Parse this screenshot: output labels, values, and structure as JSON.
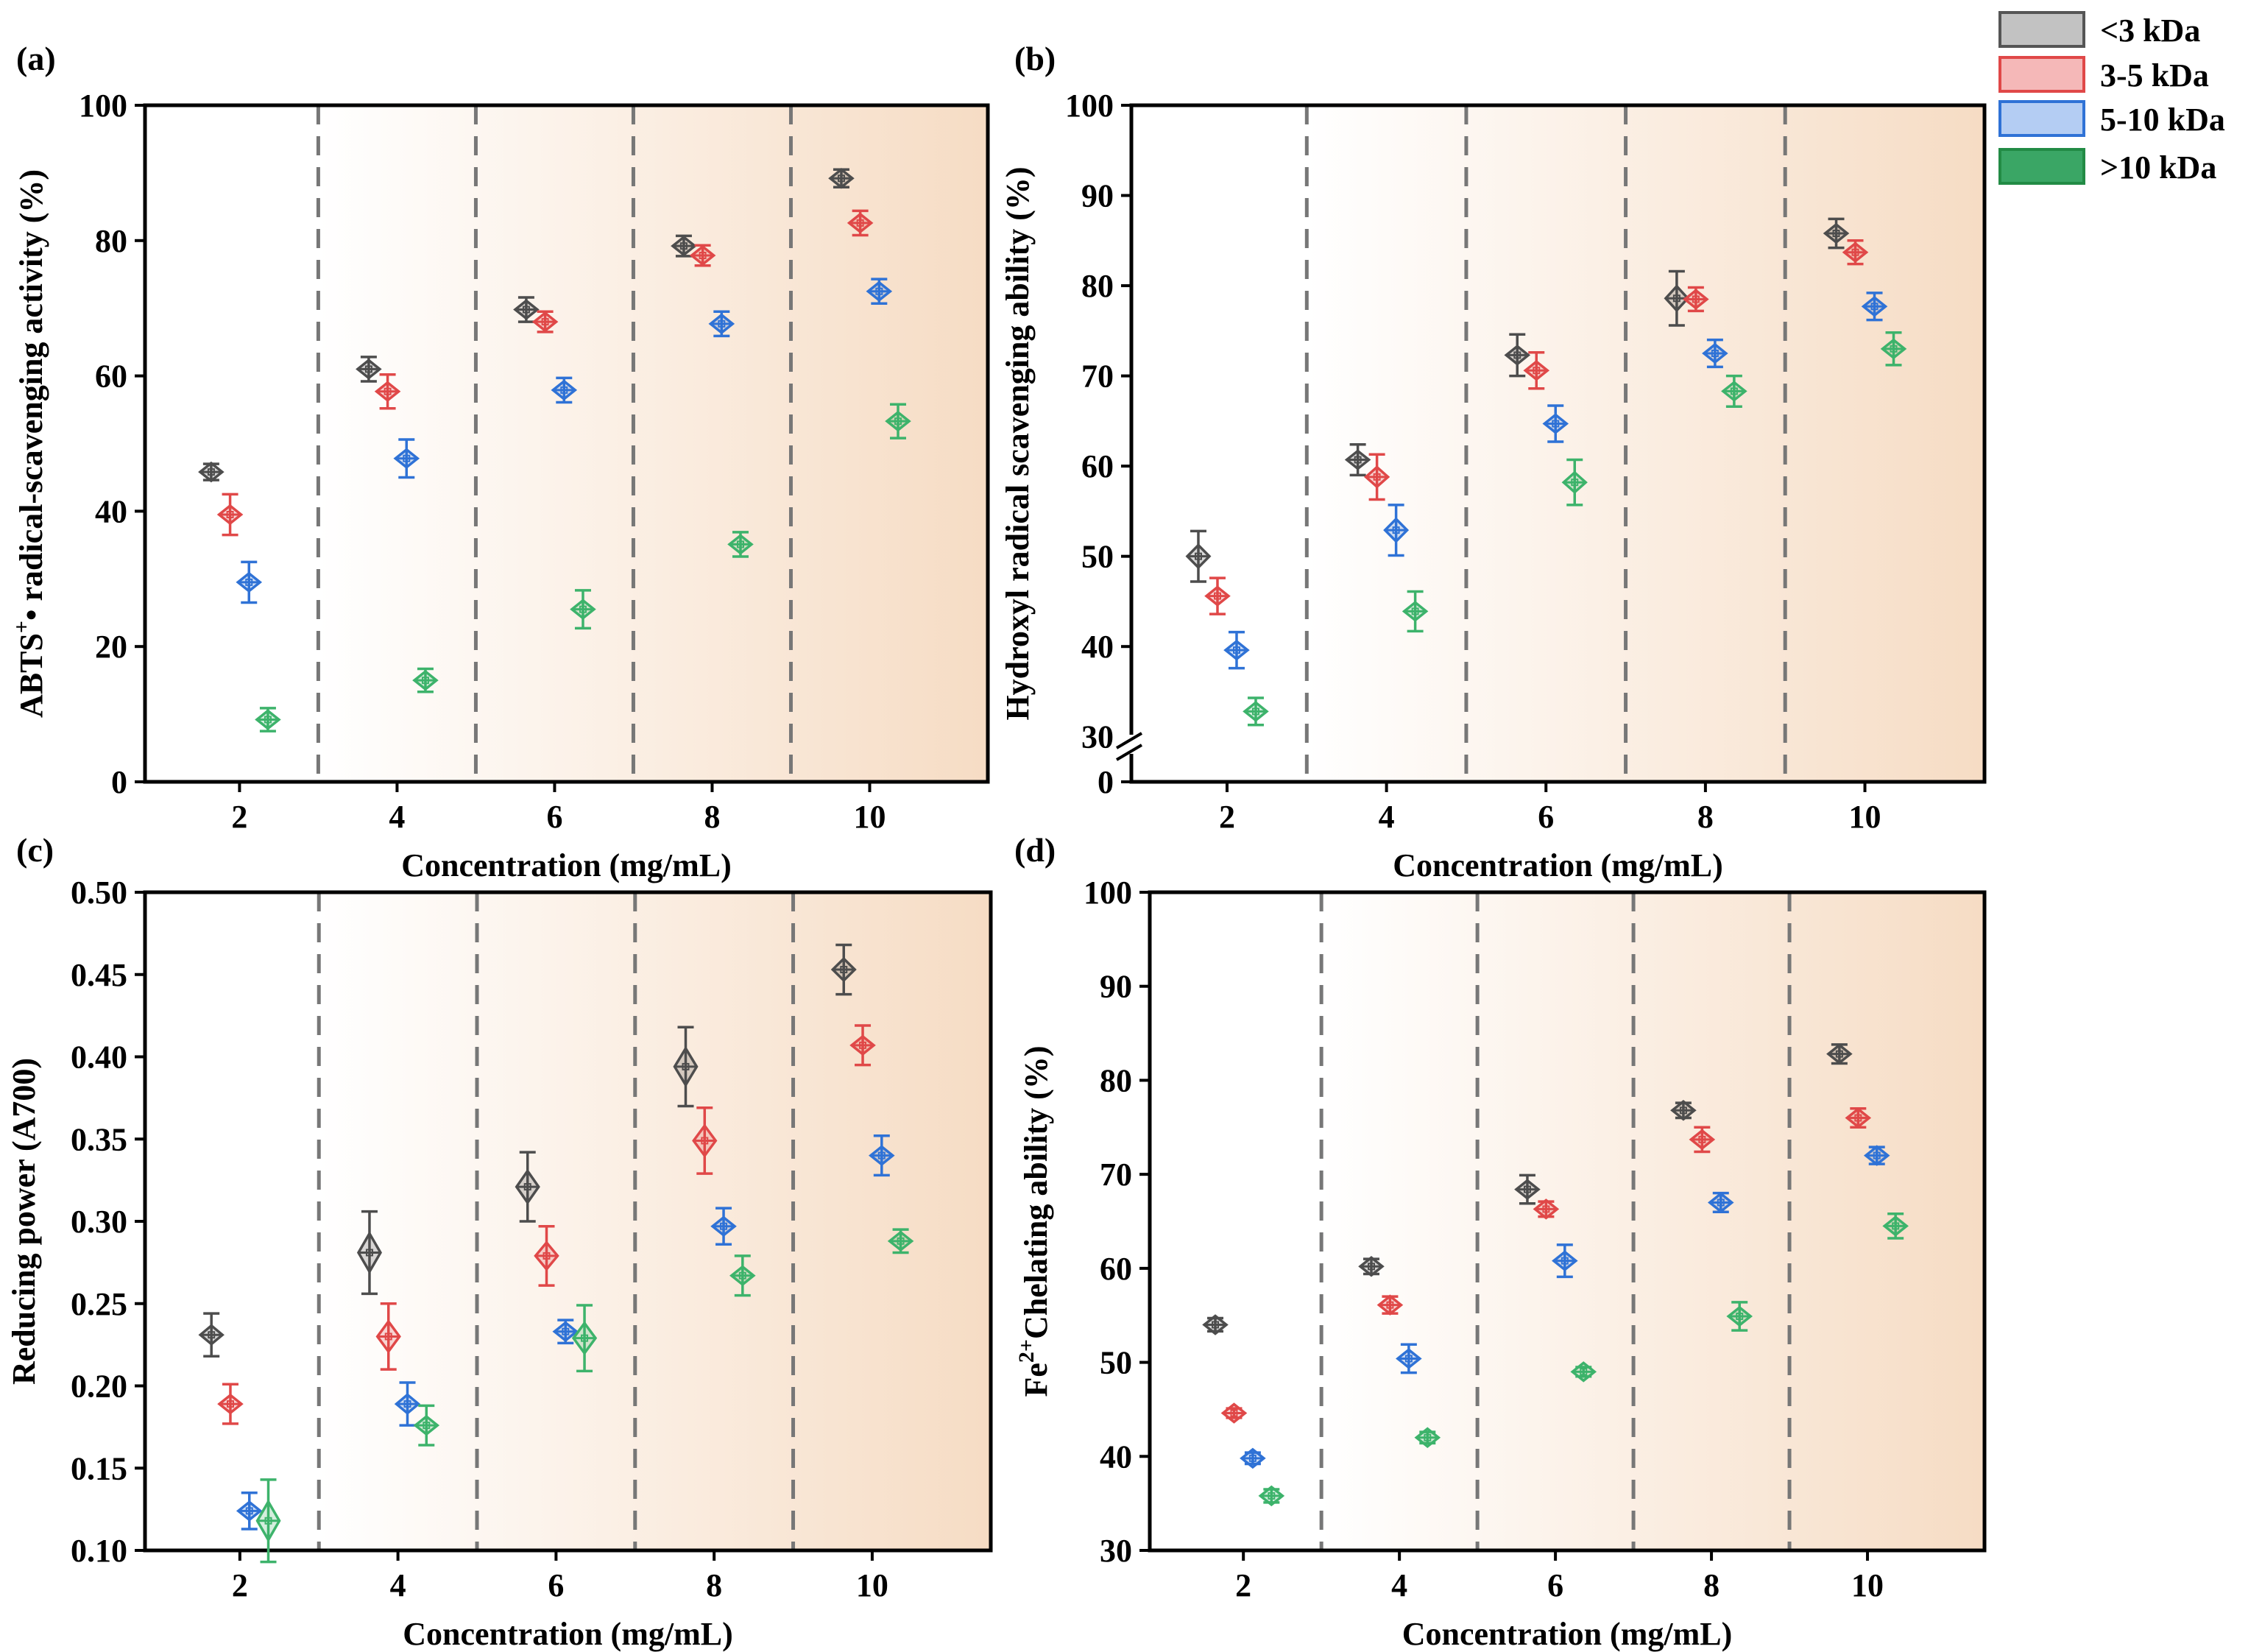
{
  "colors": {
    "series": [
      "#4d4d4d",
      "#e04848",
      "#2f72d6",
      "#3db36b"
    ],
    "legend_fill": [
      "#c2c2c2",
      "#f5b8b8",
      "#b4cdf3",
      "#3aa665"
    ],
    "legend_stroke": [
      "#555555",
      "#e04848",
      "#2f72d6",
      "#228b45"
    ],
    "band": "#f6dcc4",
    "divider": "#777777"
  },
  "legend": {
    "entries": [
      "<3 kDa",
      "3-5 kDa",
      "5-10 kDa",
      ">10 kDa"
    ]
  },
  "chart_data": [
    {
      "panel": "(a)",
      "type": "violin-scatter",
      "xlabel": "Concentration (mg/mL)",
      "ylabel_main": "ABTS",
      "ylabel_sup": "+",
      "ylabel_rest": "• radical-scavenging activity (%)",
      "categories": [
        "2",
        "4",
        "6",
        "8",
        "10"
      ],
      "ylim": [
        0,
        100
      ],
      "yticks": [
        0,
        20,
        40,
        60,
        80,
        100
      ],
      "ytick_labels": [
        "0",
        "20",
        "40",
        "60",
        "80",
        "100"
      ],
      "axis_break": false,
      "series": [
        {
          "name": "<3 kDa",
          "values": [
            45.8,
            61.0,
            69.8,
            79.2,
            89.2
          ],
          "errors": [
            1.2,
            1.8,
            1.8,
            1.5,
            1.3
          ]
        },
        {
          "name": "3-5 kDa",
          "values": [
            39.5,
            57.7,
            68.0,
            77.8,
            82.6
          ],
          "errors": [
            3.0,
            2.5,
            1.5,
            1.5,
            1.8
          ]
        },
        {
          "name": "5-10 kDa",
          "values": [
            29.5,
            47.8,
            57.9,
            67.7,
            72.5
          ],
          "errors": [
            3.0,
            2.8,
            1.8,
            1.8,
            1.8
          ]
        },
        {
          "name": ">10 kDa",
          "values": [
            9.2,
            15.0,
            25.5,
            35.1,
            53.3
          ],
          "errors": [
            1.7,
            1.7,
            2.8,
            1.8,
            2.5
          ]
        }
      ]
    },
    {
      "panel": "(b)",
      "type": "violin-scatter",
      "xlabel": "Concentration (mg/mL)",
      "ylabel_main": "Hydroxyl radical scavenging ability (%)",
      "ylabel_sup": "",
      "ylabel_rest": "",
      "categories": [
        "2",
        "4",
        "6",
        "8",
        "10"
      ],
      "ylim": [
        25,
        100
      ],
      "yticks": [
        30,
        40,
        50,
        60,
        70,
        80,
        90,
        100
      ],
      "ytick_labels": [
        "30",
        "40",
        "50",
        "60",
        "70",
        "80",
        "90",
        "100"
      ],
      "axis_break": true,
      "break_label": "0",
      "series": [
        {
          "name": "<3 kDa",
          "values": [
            50.0,
            60.7,
            72.3,
            78.6,
            85.8
          ],
          "errors": [
            2.8,
            1.7,
            2.3,
            3.0,
            1.6
          ]
        },
        {
          "name": "3-5 kDa",
          "values": [
            45.6,
            58.8,
            70.6,
            78.5,
            83.7
          ],
          "errors": [
            2.0,
            2.5,
            2.0,
            1.3,
            1.3
          ]
        },
        {
          "name": "5-10 kDa",
          "values": [
            39.6,
            52.9,
            64.7,
            72.5,
            77.7
          ],
          "errors": [
            2.0,
            2.8,
            2.0,
            1.5,
            1.5
          ]
        },
        {
          "name": ">10 kDa",
          "values": [
            32.8,
            43.9,
            58.2,
            68.3,
            73.0
          ],
          "errors": [
            1.5,
            2.2,
            2.5,
            1.7,
            1.8
          ]
        }
      ]
    },
    {
      "panel": "(c)",
      "type": "violin-scatter",
      "xlabel": "Concentration (mg/mL)",
      "ylabel_main": "Reducing power (A700)",
      "ylabel_sup": "",
      "ylabel_rest": "",
      "categories": [
        "2",
        "4",
        "6",
        "8",
        "10"
      ],
      "ylim": [
        0.1,
        0.5
      ],
      "yticks": [
        0.1,
        0.15,
        0.2,
        0.25,
        0.3,
        0.35,
        0.4,
        0.45,
        0.5
      ],
      "ytick_labels": [
        "0.10",
        "0.15",
        "0.20",
        "0.25",
        "0.30",
        "0.35",
        "0.40",
        "0.45",
        "0.50"
      ],
      "axis_break": false,
      "series": [
        {
          "name": "<3 kDa",
          "values": [
            0.231,
            0.281,
            0.321,
            0.394,
            0.453
          ],
          "errors": [
            0.013,
            0.025,
            0.021,
            0.024,
            0.015
          ]
        },
        {
          "name": "3-5 kDa",
          "values": [
            0.189,
            0.23,
            0.279,
            0.349,
            0.407
          ],
          "errors": [
            0.012,
            0.02,
            0.018,
            0.02,
            0.012
          ]
        },
        {
          "name": "5-10 kDa",
          "values": [
            0.124,
            0.189,
            0.233,
            0.297,
            0.34
          ],
          "errors": [
            0.011,
            0.013,
            0.007,
            0.011,
            0.012
          ]
        },
        {
          "name": ">10 kDa",
          "values": [
            0.118,
            0.176,
            0.229,
            0.267,
            0.288
          ],
          "errors": [
            0.025,
            0.012,
            0.02,
            0.012,
            0.007
          ]
        }
      ]
    },
    {
      "panel": "(d)",
      "type": "violin-scatter",
      "xlabel": "Concentration (mg/mL)",
      "ylabel_main": "Fe",
      "ylabel_sup": "2+",
      "ylabel_rest": "Chelating ability (%)",
      "categories": [
        "2",
        "4",
        "6",
        "8",
        "10"
      ],
      "ylim": [
        30,
        100
      ],
      "yticks": [
        30,
        40,
        50,
        60,
        70,
        80,
        90,
        100
      ],
      "ytick_labels": [
        "30",
        "40",
        "50",
        "60",
        "70",
        "80",
        "90",
        "100"
      ],
      "axis_break": false,
      "series": [
        {
          "name": "<3 kDa",
          "values": [
            54.0,
            60.2,
            68.4,
            76.8,
            82.8
          ],
          "errors": [
            0.7,
            0.8,
            1.5,
            0.8,
            1.0
          ]
        },
        {
          "name": "3-5 kDa",
          "values": [
            44.6,
            56.1,
            66.3,
            73.7,
            76.0
          ],
          "errors": [
            0.5,
            0.9,
            0.8,
            1.3,
            1.0
          ]
        },
        {
          "name": "5-10 kDa",
          "values": [
            39.8,
            50.4,
            60.8,
            67.0,
            72.0
          ],
          "errors": [
            0.6,
            1.5,
            1.7,
            1.0,
            0.9
          ]
        },
        {
          "name": ">10 kDa",
          "values": [
            35.8,
            42.0,
            49.0,
            54.9,
            64.5
          ],
          "errors": [
            0.7,
            0.6,
            0.5,
            1.5,
            1.3
          ]
        }
      ]
    }
  ]
}
